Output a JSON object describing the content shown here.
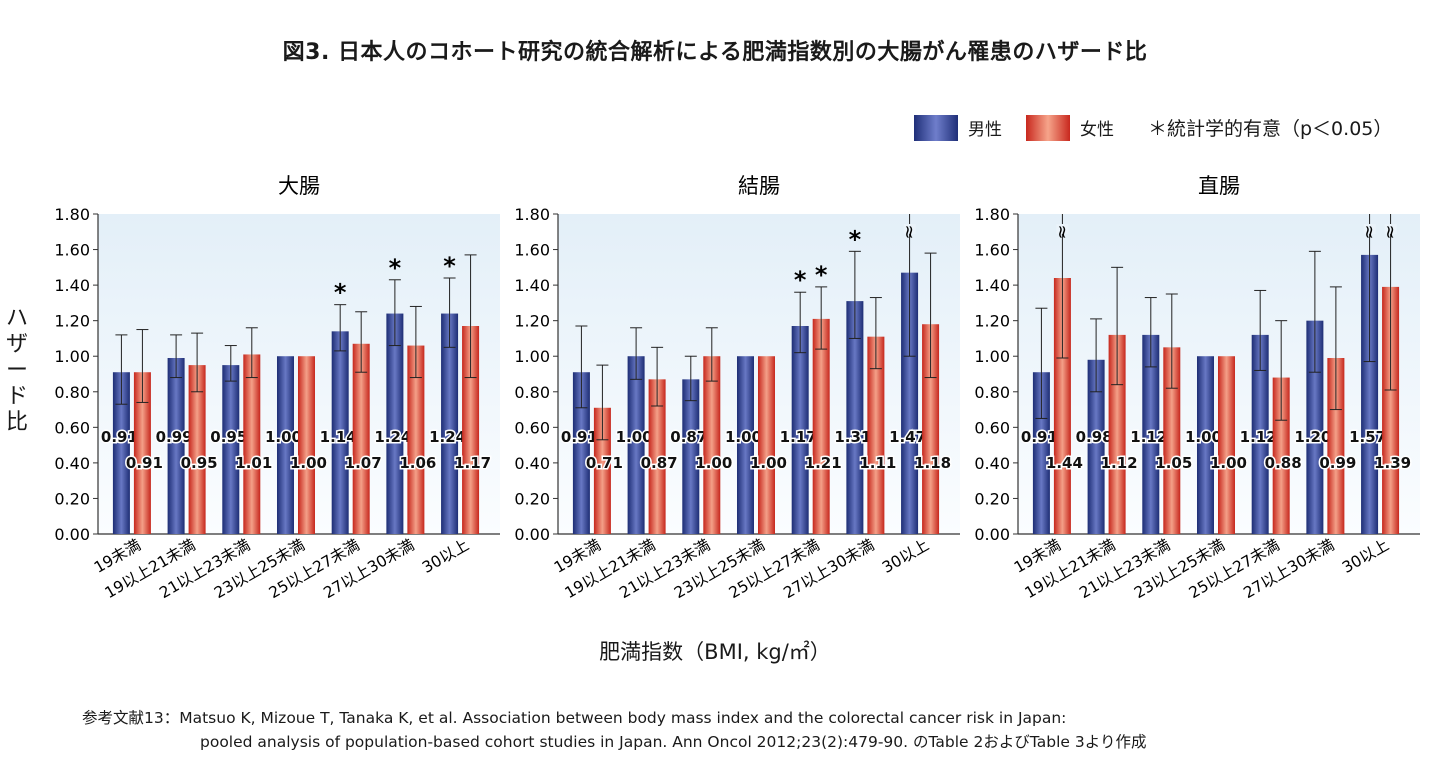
{
  "title": "図3. 日本人のコホート研究の統合解析による肥満指数別の大腸がん罹患のハザード比",
  "legend": {
    "male": "男性",
    "female": "女性",
    "significance": "＊統計学的有意（p＜0.05）"
  },
  "colors": {
    "male": "#26388a",
    "female": "#d9362a",
    "panel_bg": "#eaf3fa"
  },
  "ylabel": "ハザード比",
  "xlabel": "肥満指数（BMI, kg/㎡）",
  "reference": {
    "line1": "参考文献13：Matsuo K, Mizoue T, Tanaka K, et al. Association between body mass index and the colorectal cancer risk in Japan:",
    "line2": "pooled analysis of population-based cohort studies in Japan. Ann Oncol 2012;23(2):479-90. のTable 2およびTable 3より作成"
  },
  "chart_data": [
    {
      "type": "bar",
      "title": "大腸",
      "categories": [
        "19未満",
        "19以上21未満",
        "21以上23未満",
        "23以上25未満",
        "25以上27未満",
        "27以上30未満",
        "30以上"
      ],
      "ylim": [
        0,
        1.8
      ],
      "yticks": [
        "0.00",
        "0.20",
        "0.40",
        "0.60",
        "0.80",
        "1.00",
        "1.20",
        "1.40",
        "1.60",
        "1.80"
      ],
      "series": [
        {
          "name": "男性",
          "values": [
            0.91,
            0.99,
            0.95,
            1.0,
            1.14,
            1.24,
            1.24
          ],
          "labels": [
            "0.91",
            "0.99",
            "0.95",
            "1.00",
            "1.14",
            "1.24",
            "1.24"
          ],
          "ci_low": [
            0.73,
            0.88,
            0.86,
            1.0,
            1.03,
            1.06,
            1.05
          ],
          "ci_high": [
            1.12,
            1.12,
            1.06,
            1.0,
            1.29,
            1.43,
            1.44
          ],
          "significant": [
            false,
            false,
            false,
            false,
            true,
            true,
            true
          ]
        },
        {
          "name": "女性",
          "values": [
            0.91,
            0.95,
            1.01,
            1.0,
            1.07,
            1.06,
            1.17
          ],
          "labels": [
            "0.91",
            "0.95",
            "1.01",
            "1.00",
            "1.07",
            "1.06",
            "1.17"
          ],
          "ci_low": [
            0.74,
            0.8,
            0.88,
            1.0,
            0.91,
            0.88,
            0.88
          ],
          "ci_high": [
            1.15,
            1.13,
            1.16,
            1.0,
            1.25,
            1.28,
            1.57
          ],
          "significant": [
            false,
            false,
            false,
            false,
            false,
            false,
            false
          ]
        }
      ]
    },
    {
      "type": "bar",
      "title": "結腸",
      "categories": [
        "19未満",
        "19以上21未満",
        "21以上23未満",
        "23以上25未満",
        "25以上27未満",
        "27以上30未満",
        "30以上"
      ],
      "ylim": [
        0,
        1.8
      ],
      "yticks": [
        "0.00",
        "0.20",
        "0.40",
        "0.60",
        "0.80",
        "1.00",
        "1.20",
        "1.40",
        "1.60",
        "1.80"
      ],
      "series": [
        {
          "name": "男性",
          "values": [
            0.91,
            1.0,
            0.87,
            1.0,
            1.17,
            1.31,
            1.47
          ],
          "labels": [
            "0.91",
            "1.00",
            "0.87",
            "1.00",
            "1.17",
            "1.31",
            "1.47"
          ],
          "ci_low": [
            0.71,
            0.87,
            0.75,
            1.0,
            1.02,
            1.1,
            1.0
          ],
          "ci_high": [
            1.17,
            1.16,
            1.0,
            1.0,
            1.36,
            1.59,
            1.8
          ],
          "ci_break": [
            false,
            false,
            false,
            false,
            false,
            false,
            true
          ],
          "significant": [
            false,
            false,
            false,
            false,
            true,
            true,
            false
          ]
        },
        {
          "name": "女性",
          "values": [
            0.71,
            0.87,
            1.0,
            1.0,
            1.21,
            1.11,
            1.18
          ],
          "labels": [
            "0.71",
            "0.87",
            "1.00",
            "1.00",
            "1.21",
            "1.11",
            "1.18"
          ],
          "ci_low": [
            0.53,
            0.72,
            0.86,
            1.0,
            1.04,
            0.93,
            0.88
          ],
          "ci_high": [
            0.95,
            1.05,
            1.16,
            1.0,
            1.39,
            1.33,
            1.58
          ],
          "ci_break": [
            false,
            false,
            false,
            false,
            false,
            false,
            false
          ],
          "significant": [
            false,
            false,
            false,
            false,
            true,
            false,
            false
          ]
        }
      ]
    },
    {
      "type": "bar",
      "title": "直腸",
      "categories": [
        "19未満",
        "19以上21未満",
        "21以上23未満",
        "23以上25未満",
        "25以上27未満",
        "27以上30未満",
        "30以上"
      ],
      "ylim": [
        0,
        1.8
      ],
      "yticks": [
        "0.00",
        "0.20",
        "0.40",
        "0.60",
        "0.80",
        "1.00",
        "1.20",
        "1.40",
        "1.60",
        "1.80"
      ],
      "series": [
        {
          "name": "男性",
          "values": [
            0.91,
            0.98,
            1.12,
            1.0,
            1.12,
            1.2,
            1.57
          ],
          "labels": [
            "0.91",
            "0.98",
            "1.12",
            "1.00",
            "1.12",
            "1.20",
            "1.57"
          ],
          "ci_low": [
            0.65,
            0.8,
            0.94,
            1.0,
            0.92,
            0.91,
            0.97
          ],
          "ci_high": [
            1.27,
            1.21,
            1.33,
            1.0,
            1.37,
            1.59,
            1.8
          ],
          "ci_break": [
            false,
            false,
            false,
            false,
            false,
            false,
            true
          ],
          "significant": [
            false,
            false,
            false,
            false,
            false,
            false,
            false
          ]
        },
        {
          "name": "女性",
          "values": [
            1.44,
            1.12,
            1.05,
            1.0,
            0.88,
            0.99,
            1.39
          ],
          "labels": [
            "1.44",
            "1.12",
            "1.05",
            "1.00",
            "0.88",
            "0.99",
            "1.39"
          ],
          "ci_low": [
            0.99,
            0.84,
            0.82,
            1.0,
            0.64,
            0.7,
            0.81
          ],
          "ci_high": [
            1.8,
            1.5,
            1.35,
            1.0,
            1.2,
            1.39,
            1.8
          ],
          "ci_break": [
            true,
            false,
            false,
            false,
            false,
            false,
            true
          ],
          "significant": [
            false,
            false,
            false,
            false,
            false,
            false,
            false
          ]
        }
      ]
    }
  ]
}
